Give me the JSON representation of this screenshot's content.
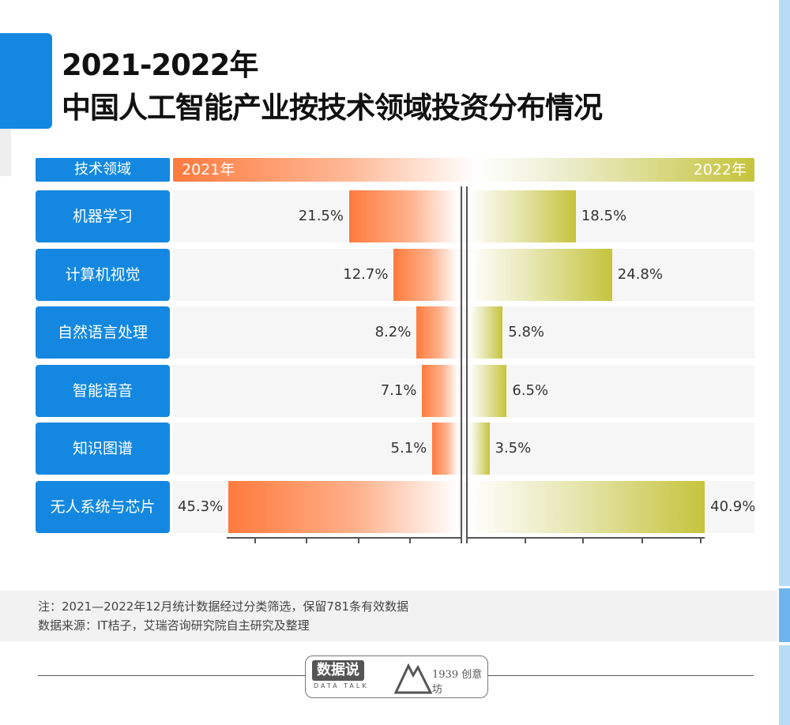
{
  "title": {
    "line1": "2021-2022年",
    "line2": "中国人工智能产业按技术领域投资分布情况"
  },
  "chart_data": {
    "type": "bar",
    "orientation": "horizontal-butterfly",
    "header": {
      "category_label": "技术领域",
      "left_series": "2021年",
      "right_series": "2022年"
    },
    "categories": [
      "机器学习",
      "计算机视觉",
      "自然语言处理",
      "智能语音",
      "知识图谱",
      "无人系统与芯片"
    ],
    "series": [
      {
        "name": "2021年",
        "values": [
          21.5,
          12.7,
          8.2,
          7.1,
          5.1,
          45.3
        ],
        "labels": [
          "21.5%",
          "12.7%",
          "8.2%",
          "7.1%",
          "5.1%",
          "45.3%"
        ],
        "color": "#ff7a3d"
      },
      {
        "name": "2022年",
        "values": [
          18.5,
          24.8,
          5.8,
          6.5,
          3.5,
          40.9
        ],
        "labels": [
          "18.5%",
          "24.8%",
          "5.8%",
          "6.5%",
          "3.5%",
          "40.9%"
        ],
        "color": "#c6c43c"
      }
    ],
    "unit": "%",
    "grid": false,
    "tick_labels_shown": false
  },
  "notes": {
    "line1": "注：2021—2022年12月统计数据经过分类筛选，保留781条有效数据",
    "line2": "数据来源：IT桔子，艾瑞咨询研究院自主研究及整理"
  },
  "logo": {
    "brand": "数据说",
    "sub": "DATA TALK",
    "partner": "1939 创意坊"
  },
  "colors": {
    "accent": "#1488e0",
    "left": "#ff7a3d",
    "right": "#c6c43c"
  }
}
